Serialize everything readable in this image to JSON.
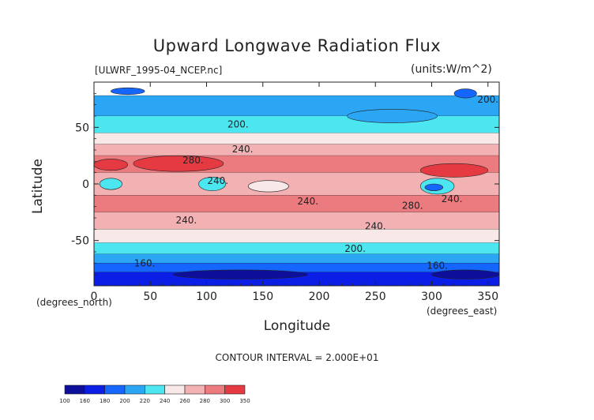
{
  "chart_data": {
    "type": "heatmap",
    "title": "Upward Longwave Radiation Flux",
    "source_label": "[ULWRF_1995-04_NCEP.nc]",
    "units_label": "(units:W/m^2)",
    "xlabel": "Longitude",
    "ylabel": "Latitude",
    "x_unit_label": "(degrees_east)",
    "y_unit_label": "(degrees_north)",
    "xlim": [
      0,
      360
    ],
    "ylim": [
      -90,
      90
    ],
    "x_ticks": [
      0,
      50,
      100,
      150,
      200,
      250,
      300,
      350
    ],
    "y_ticks": [
      -50,
      0,
      50
    ],
    "contour_interval_label": "CONTOUR INTERVAL = 2.000E+01",
    "colorbar_levels": [
      "100",
      "160",
      "180",
      "200",
      "220",
      "240",
      "260",
      "280",
      "300",
      "350"
    ],
    "colorbar_colors": [
      "#0d0f9a",
      "#0a1ee6",
      "#1466ff",
      "#2aa6f5",
      "#4be6f0",
      "#f8e8e8",
      "#f2b2b4",
      "#ec7b7f",
      "#e63a42"
    ],
    "latitude_bands": [
      {
        "lat_from": 90,
        "lat_to": 78,
        "color": "#ffffff"
      },
      {
        "lat_from": 78,
        "lat_to": 60,
        "color": "#2aa6f5"
      },
      {
        "lat_from": 60,
        "lat_to": 45,
        "color": "#4be6f0"
      },
      {
        "lat_from": 45,
        "lat_to": 35,
        "color": "#f8e8e8"
      },
      {
        "lat_from": 35,
        "lat_to": 25,
        "color": "#f2b2b4"
      },
      {
        "lat_from": 25,
        "lat_to": 10,
        "color": "#ec7b7f"
      },
      {
        "lat_from": 10,
        "lat_to": -10,
        "color": "#f2b2b4"
      },
      {
        "lat_from": -10,
        "lat_to": -25,
        "color": "#ec7b7f"
      },
      {
        "lat_from": -25,
        "lat_to": -40,
        "color": "#f2b2b4"
      },
      {
        "lat_from": -40,
        "lat_to": -52,
        "color": "#f8e8e8"
      },
      {
        "lat_from": -52,
        "lat_to": -62,
        "color": "#4be6f0"
      },
      {
        "lat_from": -62,
        "lat_to": -70,
        "color": "#2aa6f5"
      },
      {
        "lat_from": -70,
        "lat_to": -78,
        "color": "#1466ff"
      },
      {
        "lat_from": -78,
        "lat_to": -90,
        "color": "#0a1ee6"
      }
    ],
    "regions": [
      {
        "lon": 75,
        "lat": 18,
        "rlon": 40,
        "rlat": 7,
        "color": "#e63a42"
      },
      {
        "lon": 15,
        "lat": 17,
        "rlon": 15,
        "rlat": 5,
        "color": "#e63a42"
      },
      {
        "lon": 320,
        "lat": 12,
        "rlon": 30,
        "rlat": 6,
        "color": "#e63a42"
      },
      {
        "lon": 305,
        "lat": -2,
        "rlon": 15,
        "rlat": 7,
        "color": "#4be6f0"
      },
      {
        "lon": 302,
        "lat": -3,
        "rlon": 8,
        "rlat": 3,
        "color": "#1466ff"
      },
      {
        "lon": 15,
        "lat": 0,
        "rlon": 10,
        "rlat": 5,
        "color": "#4be6f0"
      },
      {
        "lon": 105,
        "lat": 0,
        "rlon": 12,
        "rlat": 6,
        "color": "#4be6f0"
      },
      {
        "lon": 155,
        "lat": -2,
        "rlon": 18,
        "rlat": 5,
        "color": "#f8e8e8"
      },
      {
        "lon": 330,
        "lat": 80,
        "rlon": 10,
        "rlat": 4,
        "color": "#1466ff"
      },
      {
        "lon": 30,
        "lat": 82,
        "rlon": 15,
        "rlat": 3,
        "color": "#1466ff"
      },
      {
        "lon": 265,
        "lat": 60,
        "rlon": 40,
        "rlat": 6,
        "color": "#2aa6f5"
      },
      {
        "lon": 130,
        "lat": -80,
        "rlon": 60,
        "rlat": 4,
        "color": "#0d0f9a"
      },
      {
        "lon": 330,
        "lat": -80,
        "rlon": 30,
        "rlat": 4,
        "color": "#0d0f9a"
      }
    ],
    "contour_labels": [
      {
        "lon": 128,
        "lat": 50,
        "text": "200."
      },
      {
        "lon": 350,
        "lat": 72,
        "text": "200."
      },
      {
        "lon": 132,
        "lat": 28,
        "text": "240."
      },
      {
        "lon": 88,
        "lat": 18,
        "text": "280."
      },
      {
        "lon": 110,
        "lat": 0,
        "text": "240."
      },
      {
        "lon": 190,
        "lat": -18,
        "text": "240."
      },
      {
        "lon": 318,
        "lat": -16,
        "text": "240."
      },
      {
        "lon": 283,
        "lat": -22,
        "text": "280."
      },
      {
        "lon": 82,
        "lat": -35,
        "text": "240."
      },
      {
        "lon": 250,
        "lat": -40,
        "text": "240."
      },
      {
        "lon": 232,
        "lat": -60,
        "text": "200."
      },
      {
        "lon": 45,
        "lat": -73,
        "text": "160."
      },
      {
        "lon": 305,
        "lat": -75,
        "text": "160."
      }
    ]
  }
}
